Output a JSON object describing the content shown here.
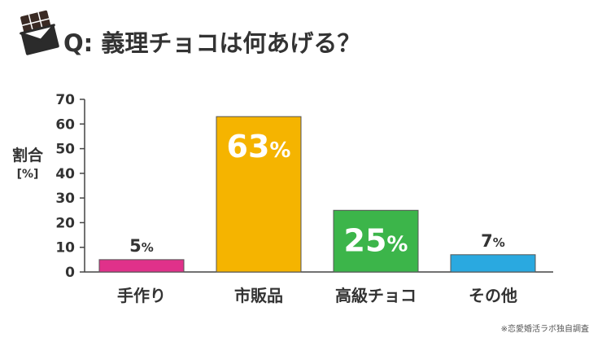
{
  "header": {
    "title": "Q: 義理チョコは何あげる？",
    "icon": "chocolate-bar-icon"
  },
  "axis": {
    "ylabel": "割合",
    "yunit": "[%]"
  },
  "source_note": "※恋愛婚活ラボ独自調査",
  "chart_data": {
    "type": "bar",
    "title": "Q: 義理チョコは何あげる？",
    "xlabel": "",
    "ylabel": "割合 [%]",
    "ylim": [
      0,
      70
    ],
    "yticks": [
      0,
      10,
      20,
      30,
      40,
      50,
      60,
      70
    ],
    "grid": false,
    "categories": [
      "手作り",
      "市販品",
      "高級チョコ",
      "その他"
    ],
    "values": [
      5,
      63,
      25,
      7
    ],
    "data_labels": [
      "5%",
      "63%",
      "25%",
      "7%"
    ],
    "colors": [
      "#e0318a",
      "#f5b400",
      "#3cb54a",
      "#2aa9e0"
    ]
  }
}
